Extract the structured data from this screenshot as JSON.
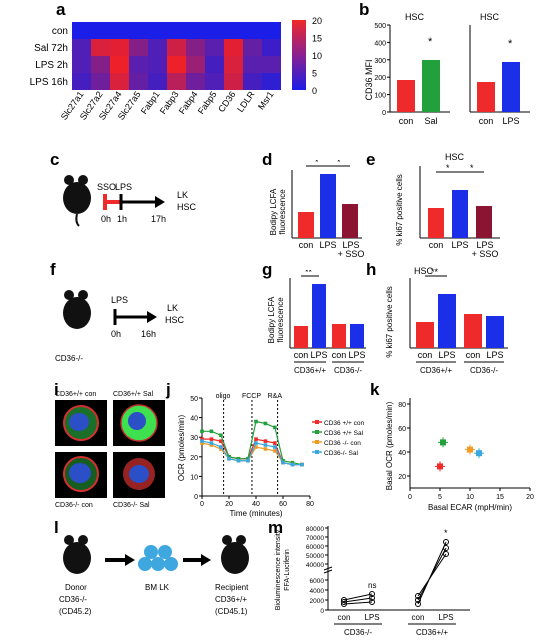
{
  "panel_labels": [
    "a",
    "b",
    "c",
    "d",
    "e",
    "f",
    "g",
    "h",
    "i",
    "j",
    "k",
    "l",
    "m"
  ],
  "colors": {
    "red": "#ee2a2a",
    "green": "#22a03c",
    "blue": "#1b2ee8",
    "maroon": "#8a1431",
    "orange": "#f29a24",
    "cyan": "#38a9e0"
  },
  "a": {
    "rows": [
      "con",
      "Sal 72h",
      "LPS 2h",
      "LPS 16h"
    ],
    "cols": [
      "Slc27a1",
      "Slc27a2",
      "Slc27a4",
      "Slc27a5",
      "Fabp1",
      "Fabp3",
      "Fabp4",
      "Fabp5",
      "CD36",
      "LDLR",
      "Msr1"
    ],
    "colorbar_ticks": [
      "20",
      "15",
      "10",
      "5",
      "0"
    ],
    "values": [
      [
        0,
        0,
        0,
        0,
        0,
        0,
        0,
        0,
        0,
        0,
        0
      ],
      [
        5,
        18,
        19,
        10,
        5,
        17,
        10,
        6,
        19,
        7,
        3
      ],
      [
        5,
        10,
        20,
        6,
        5,
        20,
        12,
        4,
        18,
        6,
        6
      ],
      [
        4,
        8,
        18,
        7,
        4,
        15,
        8,
        5,
        17,
        4,
        2
      ]
    ]
  },
  "b": {
    "ylabel": "CD36 MFI",
    "yticks": [
      "500",
      "400",
      "300",
      "200",
      "100",
      "0"
    ],
    "left": {
      "title": "HSC",
      "categories": [
        "con",
        "Sal"
      ],
      "sig": "*"
    },
    "right": {
      "title": "HSC",
      "categories": [
        "con",
        "LPS"
      ],
      "sig": "*"
    }
  },
  "c": {
    "labels": [
      "SSO",
      "LPS",
      "0h",
      "1h",
      "17h",
      "LK",
      "HSC"
    ]
  },
  "d": {
    "ylabel1": "Bodipy LCFA",
    "ylabel2": "fluorescence",
    "categories": [
      "con",
      "LPS",
      "LPS",
      "+ SSO"
    ],
    "sig": [
      "*",
      "*"
    ]
  },
  "e": {
    "title": "HSC",
    "ylabel": "% ki67 positive cells",
    "categories": [
      "con",
      "LPS",
      "LPS",
      "+ SSO"
    ],
    "sig": [
      "*",
      "*"
    ]
  },
  "f": {
    "labels": [
      "LPS",
      "0h",
      "16h",
      "LK",
      "HSC",
      "CD36-/-"
    ]
  },
  "g": {
    "ylabel1": "Bodipy LCFA",
    "ylabel2": "fluorescence",
    "categories": [
      "con",
      "LPS",
      "con",
      "LPS"
    ],
    "groups": [
      "CD36+/+",
      "CD36-/-"
    ],
    "sig": "**"
  },
  "h": {
    "title": "HSC",
    "ylabel": "% ki67 positive cells",
    "categories": [
      "con",
      "LPS",
      "con",
      "LPS"
    ],
    "groups": [
      "CD36+/+",
      "CD36-/-"
    ],
    "sig": "**"
  },
  "i": {
    "captions": [
      "CD36+/+ con",
      "CD36+/+ Sal",
      "CD36-/- con",
      "CD36-/- Sal"
    ]
  },
  "j": {
    "ylabel": "OCR (pmoles/min)",
    "xlabel": "Time (minutes)",
    "yticks": [
      "50",
      "40",
      "30",
      "20",
      "10",
      "0"
    ],
    "xticks": [
      "0",
      "20",
      "40",
      "60",
      "80"
    ],
    "annotations": [
      "oligo",
      "FCCP",
      "R&A"
    ],
    "legend": [
      "CD36 +/+ con",
      "CD36 +/+ Sal",
      "CD36 -/- con",
      "CD36-/- Sal"
    ]
  },
  "k": {
    "ylabel1": "Basal OCR (pmoles/min)",
    "xlabel": "Basal ECAR (mpH/min)",
    "yticks": [
      "80",
      "60",
      "40",
      "20"
    ],
    "xticks": [
      "0",
      "5",
      "10",
      "15",
      "20"
    ]
  },
  "l": {
    "labels": [
      "Donor",
      "CD36-/-",
      "(CD45.2)",
      "BM LK",
      "Recipient",
      "CD36+/+",
      "(CD45.1)"
    ]
  },
  "m": {
    "ylabel1": "Bioluminescence intensity",
    "ylabel2": "FFA-Luciferin",
    "yticks": [
      "80000",
      "70000",
      "60000",
      "50000",
      "40000",
      "6000",
      "4000",
      "2000",
      "0"
    ],
    "categories": [
      "con",
      "LPS",
      "con",
      "LPS"
    ],
    "groups": [
      "CD36-/-",
      "CD36+/+"
    ],
    "sig": [
      "ns",
      "*"
    ]
  },
  "chart_data": [
    {
      "type": "heatmap",
      "title": "",
      "rows": [
        "con",
        "Sal 72h",
        "LPS 2h",
        "LPS 16h"
      ],
      "cols": [
        "Slc27a1",
        "Slc27a2",
        "Slc27a4",
        "Slc27a5",
        "Fabp1",
        "Fabp3",
        "Fabp4",
        "Fabp5",
        "CD36",
        "LDLR",
        "Msr1"
      ],
      "values": [
        [
          0,
          0,
          0,
          0,
          0,
          0,
          0,
          0,
          0,
          0,
          0
        ],
        [
          5,
          18,
          19,
          10,
          5,
          17,
          10,
          6,
          19,
          7,
          3
        ],
        [
          5,
          10,
          20,
          6,
          5,
          20,
          12,
          4,
          18,
          6,
          6
        ],
        [
          4,
          8,
          18,
          7,
          4,
          15,
          8,
          5,
          17,
          4,
          2
        ]
      ],
      "range": [
        0,
        20
      ]
    },
    {
      "type": "bar",
      "categories": [
        "con",
        "Sal"
      ],
      "values": [
        185,
        295
      ],
      "ylabel": "CD36 MFI",
      "ylim": [
        0,
        500
      ]
    },
    {
      "type": "bar",
      "categories": [
        "con",
        "LPS"
      ],
      "values": [
        175,
        290
      ],
      "ylabel": "CD36 MFI",
      "ylim": [
        0,
        500
      ]
    },
    {
      "type": "bar",
      "categories": [
        "con",
        "LPS",
        "LPS + SSO"
      ],
      "values": [
        1800,
        4500,
        2400
      ],
      "ylabel": "Bodipy LCFA fluorescence"
    },
    {
      "type": "bar",
      "categories": [
        "con",
        "LPS",
        "LPS + SSO"
      ],
      "values": [
        10,
        16,
        11
      ],
      "ylabel": "% ki67 positive cells"
    },
    {
      "type": "bar",
      "categories": [
        "con",
        "LPS",
        "con",
        "LPS"
      ],
      "values": [
        1800,
        4500,
        1900,
        1900
      ],
      "ylabel": "Bodipy LCFA fluorescence"
    },
    {
      "type": "bar",
      "categories": [
        "con",
        "LPS",
        "con",
        "LPS"
      ],
      "values": [
        10,
        20,
        13,
        12
      ],
      "ylabel": "% ki67 positive cells"
    },
    {
      "type": "line",
      "x": [
        0,
        7,
        14,
        20,
        27,
        34,
        40,
        47,
        54,
        60,
        67,
        74
      ],
      "series": [
        {
          "name": "CD36 +/+ con",
          "values": [
            29,
            29,
            28,
            20,
            19,
            19,
            29,
            28,
            27,
            17,
            16,
            16
          ]
        },
        {
          "name": "CD36 +/+ Sal",
          "values": [
            33,
            33,
            31,
            20,
            19,
            19,
            38,
            37,
            35,
            18,
            17,
            16
          ]
        },
        {
          "name": "CD36 -/- con",
          "values": [
            27,
            26,
            24,
            19,
            18,
            18,
            25,
            24,
            23,
            17,
            16,
            16
          ]
        },
        {
          "name": "CD36-/- Sal",
          "values": [
            28,
            27,
            25,
            19,
            18,
            18,
            27,
            26,
            25,
            17,
            16,
            16
          ]
        }
      ],
      "xlabel": "Time (minutes)",
      "ylabel": "OCR (pmoles/min)",
      "ylim": [
        0,
        50
      ],
      "xlim": [
        0,
        80
      ]
    },
    {
      "type": "scatter",
      "series": [
        {
          "name": "CD36 +/+ con",
          "x": [
            5
          ],
          "y": [
            28
          ]
        },
        {
          "name": "CD36 +/+ Sal",
          "x": [
            5.5
          ],
          "y": [
            48
          ]
        },
        {
          "name": "CD36 -/- con",
          "x": [
            10
          ],
          "y": [
            42
          ]
        },
        {
          "name": "CD36-/- Sal",
          "x": [
            11.5
          ],
          "y": [
            39
          ]
        }
      ],
      "xlabel": "Basal ECAR (mpH/min)",
      "ylabel": "Basal OCR (pmoles/min)",
      "xlim": [
        0,
        20
      ],
      "ylim": [
        10,
        85
      ]
    }
  ]
}
